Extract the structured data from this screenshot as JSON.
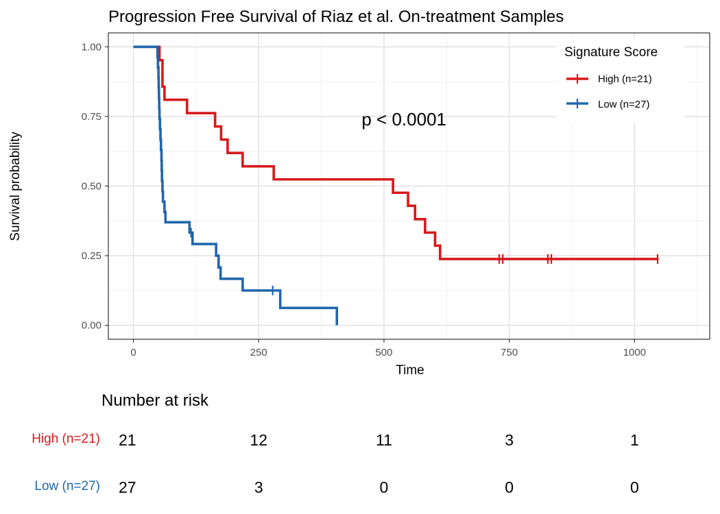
{
  "chart_data": {
    "type": "line",
    "title": "Progression Free Survival of Riaz et al. On-treatment Samples",
    "xlabel": "Time",
    "ylabel": "Survival probability",
    "xlim": [
      -50,
      1150
    ],
    "ylim": [
      -0.05,
      1.05
    ],
    "xticks": [
      0,
      250,
      500,
      750,
      1000
    ],
    "xtick_labels": [
      "0",
      "250",
      "500",
      "750",
      "1000"
    ],
    "yticks": [
      0,
      0.25,
      0.5,
      0.75,
      1
    ],
    "ytick_labels": [
      "0.00",
      "0.25",
      "0.50",
      "0.75",
      "1.00"
    ],
    "grid": true,
    "legend": {
      "title": "Signature Score",
      "position": "top-right",
      "entries": [
        "High (n=21)",
        "Low (n=27)"
      ]
    },
    "annotation": {
      "text": "p < 0.0001",
      "x": 540,
      "y": 0.74
    },
    "series": [
      {
        "name": "High (n=21)",
        "color": "#d7191c",
        "steps": [
          [
            0,
            1.0
          ],
          [
            52,
            0.952
          ],
          [
            58,
            0.857
          ],
          [
            62,
            0.81
          ],
          [
            107,
            0.762
          ],
          [
            163,
            0.714
          ],
          [
            175,
            0.667
          ],
          [
            188,
            0.619
          ],
          [
            218,
            0.571
          ],
          [
            280,
            0.524
          ],
          [
            518,
            0.476
          ],
          [
            548,
            0.429
          ],
          [
            562,
            0.381
          ],
          [
            582,
            0.333
          ],
          [
            602,
            0.286
          ],
          [
            612,
            0.238
          ]
        ],
        "end_x": 1048,
        "censor_x": [
          730,
          737,
          827,
          834,
          1046
        ]
      },
      {
        "name": "Low (n=27)",
        "color": "#2166ac",
        "steps": [
          [
            0,
            1.0
          ],
          [
            48,
            0.963
          ],
          [
            49,
            0.926
          ],
          [
            50,
            0.889
          ],
          [
            50.5,
            0.852
          ],
          [
            51,
            0.815
          ],
          [
            51.5,
            0.778
          ],
          [
            52,
            0.741
          ],
          [
            53,
            0.704
          ],
          [
            54,
            0.667
          ],
          [
            55,
            0.63
          ],
          [
            56,
            0.593
          ],
          [
            56.5,
            0.556
          ],
          [
            57,
            0.519
          ],
          [
            58,
            0.481
          ],
          [
            59,
            0.444
          ],
          [
            62,
            0.407
          ],
          [
            64,
            0.37
          ],
          [
            112,
            0.333
          ],
          [
            118,
            0.292
          ],
          [
            165,
            0.25
          ],
          [
            170,
            0.208
          ],
          [
            174,
            0.167
          ],
          [
            218,
            0.125
          ],
          [
            293,
            0.0625
          ],
          [
            406,
            0.0
          ]
        ],
        "end_x": 406,
        "censor_x": [
          115,
          278
        ]
      }
    ],
    "risk_table": {
      "title": "Number at risk",
      "times": [
        0,
        250,
        500,
        750,
        1000
      ],
      "rows": [
        {
          "label": "High (n=21)",
          "color": "#d7191c",
          "values": [
            21,
            12,
            11,
            3,
            1
          ]
        },
        {
          "label": "Low (n=27)",
          "color": "#2166ac",
          "values": [
            27,
            3,
            0,
            0,
            0
          ]
        }
      ]
    }
  }
}
